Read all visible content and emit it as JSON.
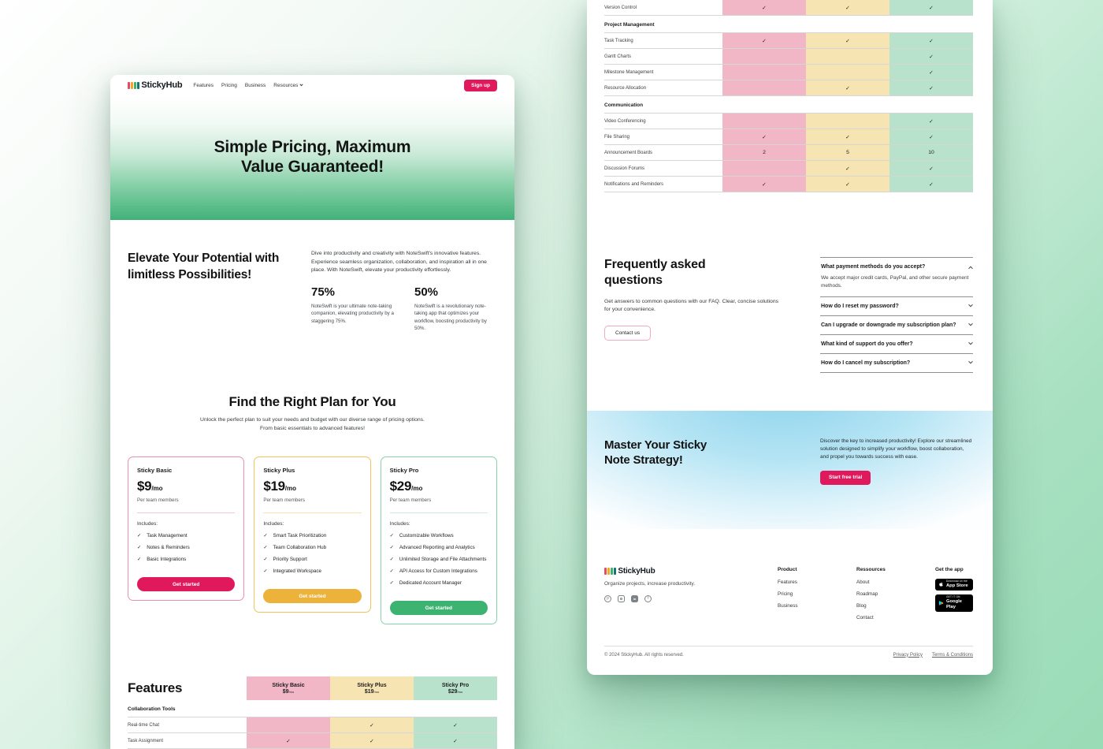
{
  "theme": {
    "accent_pink": "#e0185c",
    "accent_amber": "#ecb239",
    "accent_green": "#3cb371",
    "col_pink": "#f2b7c6",
    "col_amber": "#f7e4b3",
    "col_green": "#b8e2cc",
    "hero_green": "#41b179",
    "cta_blue": "#8ed3ec",
    "logo_bars": [
      "#e84a5f",
      "#f5a623",
      "#3cb371",
      "#17766b"
    ]
  },
  "nav": {
    "logo": "StickyHub",
    "items": [
      "Features",
      "Pricing",
      "Business",
      "Resources"
    ],
    "signup_label": "Sign up"
  },
  "hero": {
    "title": [
      "Simple Pricing, Maximum",
      "Value Guaranteed!"
    ]
  },
  "intro": {
    "heading": [
      "Elevate Your Potential with",
      "limitless Possibilities!"
    ],
    "paragraph": "Dive into productivity and creativity with NoteSwift's innovative features. Experience seamless organization, collaboration, and inspiration all in one place. With NoteSwift, elevate your productivity effortlessly.",
    "stats": [
      {
        "value": "75%",
        "text": "NoteSwift is your ultimate note-taking companion, elevating productivity by a staggering 75%."
      },
      {
        "value": "50%",
        "text": "NoteSwift is a revolutionary note-taking app that optimizes your workflow, boosting productivity by 50%."
      }
    ]
  },
  "plans_section": {
    "heading": "Find the Right Plan for You",
    "subtitle": [
      "Unlock the perfect plan to suit your needs and budget with our diverse range of pricing options.",
      "From basic essentials to advanced features!"
    ]
  },
  "plans": [
    {
      "name": "Sticky Basic",
      "price": "$9",
      "period": "/mo",
      "per_note": "Per team members",
      "includes_label": "Includes:",
      "features": [
        "Task Management",
        "Notes & Reminders",
        "Basic Integrations"
      ],
      "cta": "Get started",
      "theme": "basic"
    },
    {
      "name": "Sticky Plus",
      "price": "$19",
      "period": "/mo",
      "per_note": "Per team members",
      "includes_label": "Includes:",
      "features": [
        "Smart Task Prioritization",
        "Team Collaboration Hub",
        "Priority Support",
        "Integrated Workspace"
      ],
      "cta": "Get started",
      "theme": "plus"
    },
    {
      "name": "Sticky Pro",
      "price": "$29",
      "period": "/mo",
      "per_note": "Per team members",
      "includes_label": "Includes:",
      "features": [
        "Customizable Workflows",
        "Advanced Reporting and Analytics",
        "Unlimited Storage and File Attachments",
        "API Access for Custom Integrations",
        "Dedicated Account Manager"
      ],
      "cta": "Get started",
      "theme": "pro"
    }
  ],
  "features_table": {
    "title": "Features",
    "columns": [
      {
        "name": "Sticky Basic",
        "price": "$9",
        "period": "/mo"
      },
      {
        "name": "Sticky Plus",
        "price": "$19",
        "period": "/mo"
      },
      {
        "name": "Sticky Pro",
        "price": "$29",
        "period": "/mo"
      }
    ],
    "left_sections": [
      {
        "name": "Collaboration Tools",
        "rows": [
          {
            "label": "Real-time Chat",
            "values": [
              "",
              "✓",
              "✓"
            ]
          },
          {
            "label": "Task Assignment",
            "values": [
              "✓",
              "✓",
              "✓"
            ]
          }
        ]
      }
    ],
    "right_partial_rows": [
      {
        "label": "Version Control",
        "values": [
          "✓",
          "✓",
          "✓"
        ]
      }
    ],
    "right_sections": [
      {
        "name": "Project Management",
        "rows": [
          {
            "label": "Task Tracking",
            "values": [
              "✓",
              "✓",
              "✓"
            ]
          },
          {
            "label": "Gantt Charts",
            "values": [
              "",
              "",
              "✓"
            ]
          },
          {
            "label": "Milestone Management",
            "values": [
              "",
              "",
              "✓"
            ]
          },
          {
            "label": "Resource Allocation",
            "values": [
              "",
              "✓",
              "✓"
            ]
          }
        ]
      },
      {
        "name": "Communication",
        "rows": [
          {
            "label": "Video Conferencing",
            "values": [
              "",
              "",
              "✓"
            ]
          },
          {
            "label": "File Sharing",
            "values": [
              "✓",
              "✓",
              "✓"
            ]
          },
          {
            "label": "Announcement Boards",
            "values": [
              "2",
              "5",
              "10"
            ]
          },
          {
            "label": "Discussion Forums",
            "values": [
              "",
              "✓",
              "✓"
            ]
          },
          {
            "label": "Notifications and Reminders",
            "values": [
              "✓",
              "✓",
              "✓"
            ]
          }
        ]
      }
    ]
  },
  "faq": {
    "heading": [
      "Frequently asked",
      "questions"
    ],
    "description": "Get answers to common questions with our FAQ. Clear, concise solutions for your convenience.",
    "contact_label": "Contact us",
    "items": [
      {
        "question": "What payment methods do you accept?",
        "answer": "We accept major credit cards, PayPal, and other secure payment methods.",
        "expanded": true
      },
      {
        "question": "How do I reset my password?",
        "expanded": false
      },
      {
        "question": "Can I upgrade or downgrade my subscription plan?",
        "expanded": false
      },
      {
        "question": "What kind of support do you offer?",
        "expanded": false
      },
      {
        "question": "How do I cancel my subscription?",
        "expanded": false
      }
    ]
  },
  "cta": {
    "heading": [
      "Master Your Sticky",
      "Note Strategy!"
    ],
    "text": "Discover the key to increased productivity! Explore our streamlined solution designed to simplify your workflow, boost collaboration, and propel you towards success with ease.",
    "button_label": "Start free trial"
  },
  "footer": {
    "logo": "StickyHub",
    "tagline": "Organize projects, increase productivity.",
    "social": [
      "pinterest",
      "instagram",
      "linkedin",
      "facebook"
    ],
    "columns": [
      {
        "title": "Product",
        "links": [
          "Features",
          "Pricing",
          "Business"
        ]
      },
      {
        "title": "Ressources",
        "links": [
          "About",
          "Roadmap",
          "Blog",
          "Contact"
        ]
      }
    ],
    "apps": {
      "title": "Get the app",
      "appstore": [
        "Download on the",
        "App Store"
      ],
      "googleplay": [
        "GET IT ON",
        "Google Play"
      ]
    },
    "copyright": "© 2024 StickyHub. All rights reserved.",
    "legal": [
      "Privacy Policy",
      "Terms & Conditions"
    ]
  }
}
